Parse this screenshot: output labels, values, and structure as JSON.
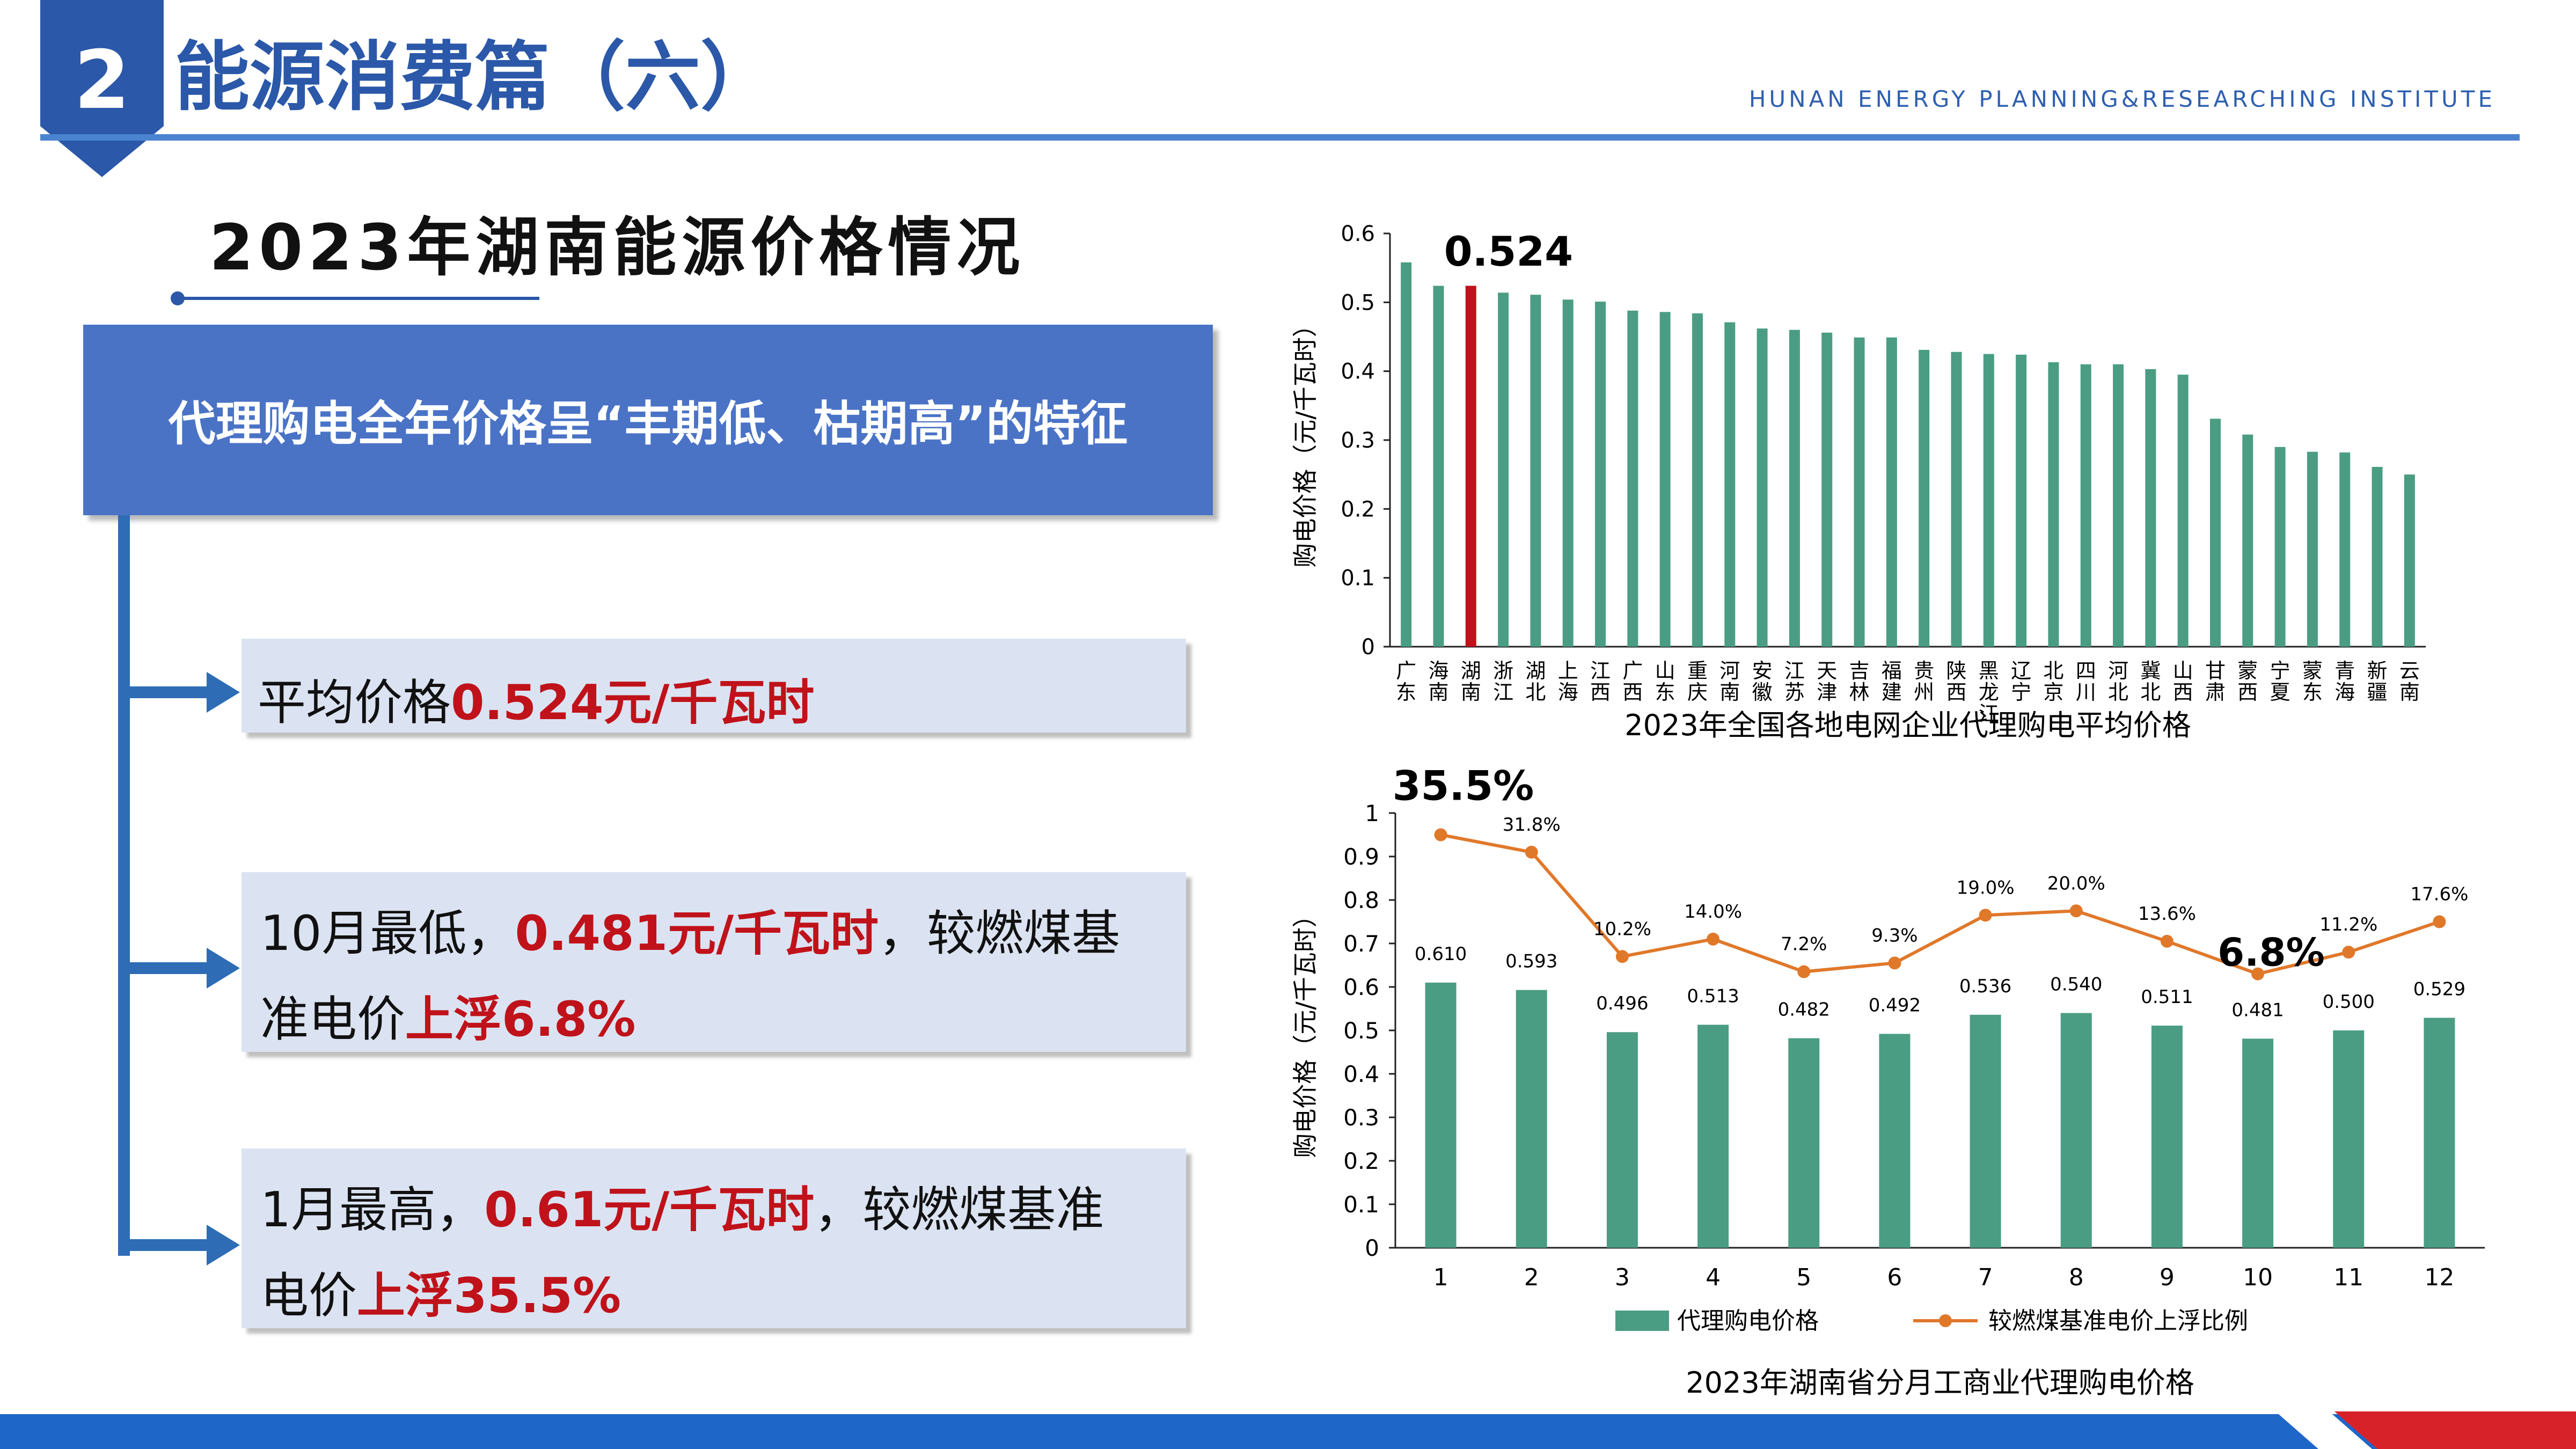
{
  "header": {
    "section_number": "2",
    "title": "能源消费篇（六）",
    "institute": "HUNAN ENERGY PLANNING&RESEARCHING INSTITUTE"
  },
  "left": {
    "subtitle": "2023年湖南能源价格情况",
    "feature": "代理购电全年价格呈“丰期低、枯期高”的特征",
    "item1": {
      "prefix": "平均价格",
      "highlight": "0.524元/千瓦时"
    },
    "item2": {
      "line1_a": "10月最低，",
      "line1_b": "0.481元/千瓦时",
      "line1_c": "，较燃煤基",
      "line2_a": "准电价",
      "line2_b": "上浮6.8%"
    },
    "item3": {
      "line1_a": "1月最高，",
      "line1_b": "0.61元/千瓦时",
      "line1_c": "，较燃煤基准",
      "line2_a": "电价",
      "line2_b": "上浮35.5%"
    }
  },
  "colors": {
    "bar": "#4a9d82",
    "highlight_bar": "#c0121a",
    "line": "#e0782a",
    "title_blue": "#2b58a8",
    "red_text": "#c0121a"
  },
  "chart_data": [
    {
      "type": "bar",
      "caption": "2023年全国各地电网企业代理购电平均价格",
      "ylabel": "购电价格（元/千瓦时）",
      "ylim": [
        0,
        0.6
      ],
      "yticks": [
        "0",
        "0.1",
        "0.2",
        "0.3",
        "0.4",
        "0.5",
        "0.6"
      ],
      "categories": [
        "广东",
        "海南",
        "湖南",
        "浙江",
        "湖北",
        "上海",
        "江西",
        "广西",
        "山东",
        "重庆",
        "河南",
        "安徽",
        "江苏",
        "天津",
        "吉林",
        "福建",
        "贵州",
        "陕西",
        "黑龙江",
        "辽宁",
        "北京",
        "四川",
        "河北",
        "冀北",
        "山西",
        "甘肃",
        "蒙西",
        "宁夏",
        "蒙东",
        "青海",
        "新疆",
        "云南"
      ],
      "values": [
        0.558,
        0.524,
        0.524,
        0.514,
        0.511,
        0.504,
        0.501,
        0.488,
        0.486,
        0.484,
        0.471,
        0.462,
        0.46,
        0.456,
        0.449,
        0.449,
        0.431,
        0.428,
        0.425,
        0.424,
        0.413,
        0.41,
        0.41,
        0.403,
        0.395,
        0.331,
        0.308,
        0.29,
        0.283,
        0.282,
        0.261,
        0.25
      ],
      "highlight_index": 2,
      "highlight_label": "0.524",
      "grid": false
    },
    {
      "type": "bar",
      "caption": "2023年湖南省分月工商业代理购电价格",
      "ylabel": "购电价格（元/千瓦时）",
      "ylim": [
        0,
        1
      ],
      "yticks": [
        "0",
        "0.1",
        "0.2",
        "0.3",
        "0.4",
        "0.5",
        "0.6",
        "0.7",
        "0.8",
        "0.9",
        "1"
      ],
      "categories": [
        "1",
        "2",
        "3",
        "4",
        "5",
        "6",
        "7",
        "8",
        "9",
        "10",
        "11",
        "12"
      ],
      "series": [
        {
          "name": "代理购电价格",
          "type": "bar",
          "values": [
            0.61,
            0.593,
            0.496,
            0.513,
            0.482,
            0.492,
            0.536,
            0.54,
            0.511,
            0.481,
            0.5,
            0.529
          ],
          "labels": [
            "0.610",
            "0.593",
            "0.496",
            "0.513",
            "0.482",
            "0.492",
            "0.536",
            "0.540",
            "0.511",
            "0.481",
            "0.500",
            "0.529"
          ]
        },
        {
          "name": "较燃煤基准电价上浮比例",
          "type": "line",
          "values": [
            0.355,
            0.318,
            0.102,
            0.14,
            0.072,
            0.093,
            0.19,
            0.2,
            0.136,
            0.068,
            0.112,
            0.176
          ],
          "labels": [
            "",
            "31.8%",
            "10.2%",
            "14.0%",
            "7.2%",
            "9.3%",
            "19.0%",
            "20.0%",
            "13.6%",
            "",
            "11.2%",
            "17.6%"
          ],
          "plot_y": [
            0.95,
            0.91,
            0.67,
            0.71,
            0.635,
            0.655,
            0.765,
            0.775,
            0.705,
            0.63,
            0.68,
            0.75
          ]
        }
      ],
      "big_labels": [
        "35.5%",
        "6.8%"
      ],
      "legend": "bottom",
      "grid": false
    }
  ]
}
